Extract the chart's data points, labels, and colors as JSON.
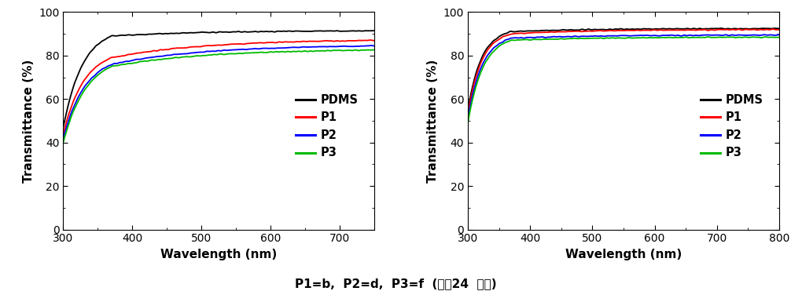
{
  "xlabel": "Wavelength (nm)",
  "ylabel": "Transmittance (%)",
  "legend_labels": [
    "PDMS",
    "P1",
    "P2",
    "P3"
  ],
  "colors": [
    "#000000",
    "#ff0000",
    "#0000ff",
    "#00bb00"
  ],
  "caption": "P1=b,  P2=d,  P3=f  (그림24  참조)",
  "plot1": {
    "xlim": [
      300,
      750
    ],
    "ylim": [
      0,
      100
    ],
    "xticks": [
      300,
      400,
      500,
      600,
      700
    ],
    "yticks": [
      0,
      20,
      40,
      60,
      80,
      100
    ],
    "series": {
      "PDMS": {
        "y_at_300": 47,
        "y_at_370": 89,
        "y_at_750": 91.5,
        "tau": 28
      },
      "P1": {
        "y_at_300": 44,
        "y_at_370": 79,
        "y_at_750": 87.5,
        "tau": 30
      },
      "P2": {
        "y_at_300": 42,
        "y_at_370": 76,
        "y_at_750": 85.0,
        "tau": 32
      },
      "P3": {
        "y_at_300": 40,
        "y_at_370": 75,
        "y_at_750": 83.0,
        "tau": 33
      }
    }
  },
  "plot2": {
    "xlim": [
      300,
      800
    ],
    "ylim": [
      0,
      100
    ],
    "xticks": [
      300,
      400,
      500,
      600,
      700,
      800
    ],
    "yticks": [
      0,
      20,
      40,
      60,
      80,
      100
    ],
    "series": {
      "PDMS": {
        "y_at_300": 55,
        "y_at_370": 91,
        "y_at_800": 92.5,
        "tau": 22
      },
      "P1": {
        "y_at_300": 53,
        "y_at_370": 90,
        "y_at_800": 92.0,
        "tau": 22
      },
      "P2": {
        "y_at_300": 51,
        "y_at_370": 88,
        "y_at_800": 89.5,
        "tau": 23
      },
      "P3": {
        "y_at_300": 49,
        "y_at_370": 87,
        "y_at_800": 88.5,
        "tau": 24
      }
    }
  },
  "figsize": [
    10.06,
    3.85
  ],
  "dpi": 100
}
